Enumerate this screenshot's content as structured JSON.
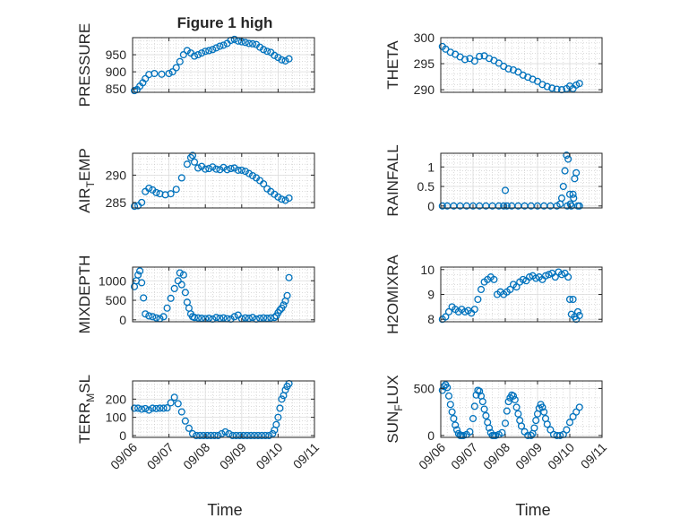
{
  "figure_title": "Figure 1 high",
  "x_ticks": [
    "09/06",
    "09/07",
    "09/08",
    "09/09",
    "09/10",
    "09/11"
  ],
  "x_label": "Time",
  "marker_color": "#0072BD",
  "chart_data": [
    {
      "type": "scatter",
      "ylabel_main": "PRESSURE",
      "ylabel_sub": "",
      "ylabel_tail": "",
      "ylim": [
        840,
        1000
      ],
      "yticks": [
        850,
        900,
        950
      ],
      "xlim": [
        0,
        5
      ],
      "grid": true,
      "x": [
        0.05,
        0.12,
        0.2,
        0.28,
        0.35,
        0.45,
        0.6,
        0.8,
        1.0,
        1.1,
        1.2,
        1.3,
        1.4,
        1.5,
        1.6,
        1.7,
        1.8,
        1.9,
        2.0,
        2.1,
        2.2,
        2.3,
        2.4,
        2.5,
        2.6,
        2.7,
        2.8,
        2.9,
        3.0,
        3.1,
        3.2,
        3.3,
        3.4,
        3.5,
        3.6,
        3.7,
        3.8,
        3.9,
        4.0,
        4.1,
        4.2,
        4.3
      ],
      "y": [
        845,
        848,
        858,
        868,
        880,
        892,
        895,
        893,
        895,
        900,
        912,
        930,
        950,
        962,
        955,
        946,
        950,
        955,
        960,
        962,
        965,
        970,
        975,
        978,
        983,
        992,
        995,
        990,
        988,
        986,
        983,
        982,
        980,
        972,
        965,
        960,
        957,
        948,
        942,
        935,
        932,
        938
      ]
    },
    {
      "type": "scatter",
      "ylabel_main": "THETA",
      "ylabel_sub": "",
      "ylabel_tail": "",
      "ylim": [
        289.5,
        300
      ],
      "yticks": [
        290,
        295,
        300
      ],
      "xlim": [
        0,
        5
      ],
      "grid": true,
      "x": [
        0.05,
        0.15,
        0.3,
        0.45,
        0.6,
        0.75,
        0.9,
        1.05,
        1.2,
        1.35,
        1.5,
        1.65,
        1.8,
        1.95,
        2.1,
        2.25,
        2.4,
        2.55,
        2.7,
        2.85,
        3.0,
        3.15,
        3.3,
        3.45,
        3.6,
        3.75,
        3.9,
        4.0,
        4.1,
        4.2,
        4.3
      ],
      "y": [
        298.3,
        297.8,
        297.2,
        296.8,
        296.3,
        295.8,
        296.0,
        295.5,
        296.4,
        296.5,
        296.0,
        295.6,
        295.1,
        294.5,
        294.0,
        293.8,
        293.4,
        292.8,
        292.4,
        292.0,
        291.6,
        291.0,
        290.6,
        290.3,
        290.1,
        290.0,
        290.2,
        290.7,
        290.2,
        290.9,
        291.2
      ]
    },
    {
      "type": "scatter",
      "ylabel_main": "AIR",
      "ylabel_sub": "T",
      "ylabel_tail": "EMP",
      "ylim": [
        284,
        294
      ],
      "yticks": [
        285,
        290
      ],
      "xlim": [
        0,
        5
      ],
      "grid": true,
      "x": [
        0.05,
        0.15,
        0.25,
        0.35,
        0.45,
        0.55,
        0.65,
        0.75,
        0.9,
        1.05,
        1.2,
        1.35,
        1.5,
        1.6,
        1.65,
        1.7,
        1.8,
        1.9,
        2.0,
        2.1,
        2.2,
        2.3,
        2.4,
        2.5,
        2.6,
        2.7,
        2.8,
        2.9,
        3.0,
        3.1,
        3.2,
        3.3,
        3.4,
        3.5,
        3.6,
        3.7,
        3.8,
        3.9,
        4.0,
        4.1,
        4.2,
        4.3
      ],
      "y": [
        284.3,
        284.4,
        285.0,
        287.0,
        287.6,
        287.3,
        286.8,
        286.6,
        286.4,
        286.6,
        287.4,
        289.5,
        292.0,
        293.2,
        293.6,
        292.4,
        291.3,
        291.6,
        291.1,
        291.2,
        291.5,
        291.1,
        291.0,
        291.4,
        291.0,
        291.2,
        291.3,
        290.9,
        290.9,
        290.7,
        290.3,
        289.9,
        289.5,
        289.0,
        288.4,
        287.5,
        287.0,
        286.5,
        286.0,
        285.6,
        285.4,
        285.8
      ]
    },
    {
      "type": "scatter",
      "ylabel_main": "RAINFALL",
      "ylabel_sub": "",
      "ylabel_tail": "",
      "ylim": [
        -0.05,
        1.35
      ],
      "yticks": [
        0,
        0.5,
        1
      ],
      "ytick_labels": [
        "0",
        "0.5",
        "1"
      ],
      "xlim": [
        0,
        5
      ],
      "grid": true,
      "x": [
        0.05,
        0.2,
        0.4,
        0.6,
        0.8,
        1.0,
        1.2,
        1.4,
        1.6,
        1.8,
        1.95,
        2.0,
        2.05,
        2.2,
        2.4,
        2.6,
        2.8,
        3.0,
        3.2,
        3.4,
        3.6,
        3.7,
        3.75,
        3.8,
        3.85,
        3.9,
        3.92,
        3.95,
        4.0,
        4.02,
        4.05,
        4.1,
        4.12,
        4.15,
        4.2,
        4.25,
        4.3
      ],
      "y": [
        0,
        0,
        0,
        0,
        0,
        0,
        0,
        0,
        0,
        0,
        0,
        0.4,
        0,
        0,
        0,
        0,
        0,
        0,
        0,
        0,
        0,
        0.05,
        0.2,
        0.5,
        0.9,
        1.3,
        0,
        1.2,
        0.3,
        0.05,
        0,
        0.3,
        0.2,
        0.7,
        0.85,
        0,
        0
      ]
    },
    {
      "type": "scatter",
      "ylabel_main": "MIXDEPTH",
      "ylabel_sub": "",
      "ylabel_tail": "",
      "ylim": [
        -50,
        1350
      ],
      "yticks": [
        0,
        500,
        1000
      ],
      "xlim": [
        0,
        5
      ],
      "grid": true,
      "x": [
        0.05,
        0.1,
        0.15,
        0.2,
        0.25,
        0.3,
        0.35,
        0.45,
        0.55,
        0.65,
        0.75,
        0.85,
        0.95,
        1.05,
        1.15,
        1.25,
        1.3,
        1.35,
        1.4,
        1.45,
        1.5,
        1.55,
        1.6,
        1.65,
        1.7,
        1.8,
        1.9,
        2.0,
        2.1,
        2.2,
        2.3,
        2.4,
        2.5,
        2.6,
        2.7,
        2.8,
        2.9,
        3.0,
        3.1,
        3.2,
        3.3,
        3.4,
        3.5,
        3.6,
        3.7,
        3.8,
        3.9,
        3.95,
        4.0,
        4.05,
        4.1,
        4.15,
        4.2,
        4.25,
        4.3
      ],
      "y": [
        850,
        1000,
        1150,
        1250,
        950,
        560,
        150,
        100,
        80,
        50,
        30,
        80,
        300,
        550,
        800,
        1000,
        1200,
        900,
        1150,
        700,
        450,
        300,
        150,
        80,
        60,
        50,
        40,
        30,
        40,
        20,
        60,
        40,
        50,
        30,
        20,
        80,
        120,
        30,
        50,
        40,
        60,
        20,
        40,
        50,
        40,
        50,
        60,
        100,
        180,
        250,
        300,
        380,
        480,
        620,
        1080
      ]
    },
    {
      "type": "scatter",
      "ylabel_main": "H2OMIXRA",
      "ylabel_sub": "",
      "ylabel_tail": "",
      "ylim": [
        7.9,
        10.1
      ],
      "yticks": [
        8,
        9,
        10
      ],
      "xlim": [
        0,
        5
      ],
      "grid": true,
      "x": [
        0.05,
        0.15,
        0.25,
        0.35,
        0.45,
        0.55,
        0.65,
        0.75,
        0.85,
        0.95,
        1.05,
        1.15,
        1.25,
        1.35,
        1.45,
        1.55,
        1.65,
        1.75,
        1.85,
        1.95,
        2.05,
        2.15,
        2.25,
        2.35,
        2.45,
        2.55,
        2.65,
        2.75,
        2.85,
        2.95,
        3.05,
        3.15,
        3.25,
        3.35,
        3.45,
        3.55,
        3.65,
        3.75,
        3.85,
        3.95,
        4.0,
        4.05,
        4.1,
        4.15,
        4.2,
        4.25,
        4.3
      ],
      "y": [
        8.0,
        8.1,
        8.3,
        8.5,
        8.4,
        8.3,
        8.4,
        8.3,
        8.35,
        8.25,
        8.4,
        8.8,
        9.2,
        9.5,
        9.6,
        9.7,
        9.6,
        9.0,
        9.1,
        9.0,
        9.1,
        9.2,
        9.4,
        9.3,
        9.5,
        9.6,
        9.55,
        9.7,
        9.75,
        9.65,
        9.7,
        9.6,
        9.75,
        9.8,
        9.85,
        9.7,
        9.9,
        9.8,
        9.85,
        9.7,
        8.8,
        8.2,
        8.8,
        8.1,
        8.0,
        8.3,
        8.15
      ]
    },
    {
      "type": "scatter",
      "ylabel_main": "TERR",
      "ylabel_sub": "M",
      "ylabel_tail": "SL",
      "ylim": [
        -10,
        300
      ],
      "yticks": [
        0,
        100,
        200
      ],
      "xlim": [
        0,
        5
      ],
      "grid": true,
      "x": [
        0.05,
        0.15,
        0.25,
        0.35,
        0.45,
        0.55,
        0.65,
        0.75,
        0.85,
        0.95,
        1.05,
        1.15,
        1.25,
        1.35,
        1.45,
        1.55,
        1.65,
        1.75,
        1.85,
        1.95,
        2.05,
        2.15,
        2.25,
        2.35,
        2.45,
        2.55,
        2.65,
        2.75,
        2.85,
        2.95,
        3.05,
        3.15,
        3.25,
        3.35,
        3.45,
        3.55,
        3.65,
        3.75,
        3.85,
        3.9,
        3.95,
        4.0,
        4.05,
        4.1,
        4.15,
        4.2,
        4.25,
        4.3
      ],
      "y": [
        150,
        150,
        145,
        148,
        140,
        150,
        148,
        150,
        150,
        152,
        180,
        210,
        175,
        130,
        80,
        40,
        10,
        0,
        0,
        0,
        0,
        0,
        0,
        0,
        10,
        20,
        10,
        0,
        0,
        0,
        0,
        0,
        0,
        0,
        0,
        0,
        0,
        0,
        10,
        30,
        60,
        100,
        150,
        200,
        220,
        250,
        270,
        285
      ]
    },
    {
      "type": "scatter",
      "ylabel_main": "SUN",
      "ylabel_sub": "F",
      "ylabel_tail": "LUX",
      "ylim": [
        -20,
        580
      ],
      "yticks": [
        0,
        500
      ],
      "xlim": [
        0,
        5
      ],
      "grid": true,
      "x": [
        0.05,
        0.1,
        0.15,
        0.2,
        0.25,
        0.3,
        0.35,
        0.4,
        0.45,
        0.5,
        0.55,
        0.6,
        0.65,
        0.7,
        0.8,
        0.9,
        1.0,
        1.05,
        1.1,
        1.15,
        1.2,
        1.25,
        1.3,
        1.35,
        1.4,
        1.45,
        1.5,
        1.55,
        1.6,
        1.65,
        1.7,
        1.8,
        1.9,
        2.0,
        2.05,
        2.1,
        2.15,
        2.2,
        2.25,
        2.3,
        2.35,
        2.4,
        2.45,
        2.5,
        2.6,
        2.7,
        2.8,
        2.85,
        2.9,
        2.95,
        3.0,
        3.05,
        3.1,
        3.15,
        3.2,
        3.25,
        3.3,
        3.4,
        3.5,
        3.6,
        3.7,
        3.8,
        3.9,
        4.0,
        4.1,
        4.2,
        4.3
      ],
      "y": [
        480,
        520,
        540,
        510,
        420,
        330,
        250,
        180,
        110,
        60,
        20,
        0,
        0,
        0,
        10,
        40,
        180,
        310,
        430,
        480,
        470,
        420,
        360,
        280,
        210,
        140,
        80,
        30,
        0,
        0,
        0,
        10,
        30,
        130,
        260,
        360,
        400,
        430,
        420,
        380,
        300,
        230,
        160,
        100,
        40,
        0,
        0,
        20,
        80,
        160,
        230,
        290,
        330,
        300,
        250,
        180,
        120,
        60,
        10,
        0,
        0,
        10,
        60,
        140,
        200,
        250,
        300
      ]
    }
  ]
}
